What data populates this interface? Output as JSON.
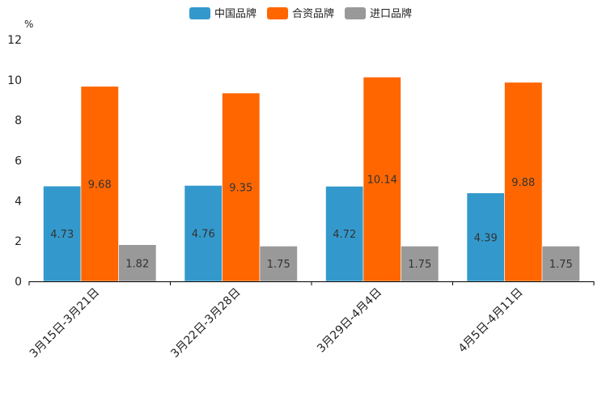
{
  "chart_data": {
    "type": "bar",
    "title": "",
    "xlabel": "",
    "ylabel": "%",
    "ylim": [
      0,
      12
    ],
    "yticks": [
      0,
      2,
      4,
      6,
      8,
      10,
      12
    ],
    "categories": [
      "3月15日-3月21日",
      "3月22日-3月28日",
      "3月29日-4月4日",
      "4月5日-4月11日"
    ],
    "series": [
      {
        "name": "中国品牌",
        "color": "#3399cc",
        "values": [
          4.73,
          4.76,
          4.72,
          4.39
        ],
        "labels": [
          "4.73",
          "4.76",
          "4.72",
          "4.39"
        ]
      },
      {
        "name": "合资品牌",
        "color": "#ff6600",
        "values": [
          9.68,
          9.35,
          10.14,
          9.88
        ],
        "labels": [
          "9.68",
          "9.35",
          "10.14",
          "9.88"
        ]
      },
      {
        "name": "进口品牌",
        "color": "#999999",
        "values": [
          1.82,
          1.75,
          1.75,
          1.75
        ],
        "labels": [
          "1.82",
          "1.75",
          "1.75",
          "1.75"
        ]
      }
    ],
    "legend": "top-center",
    "grid": false
  }
}
